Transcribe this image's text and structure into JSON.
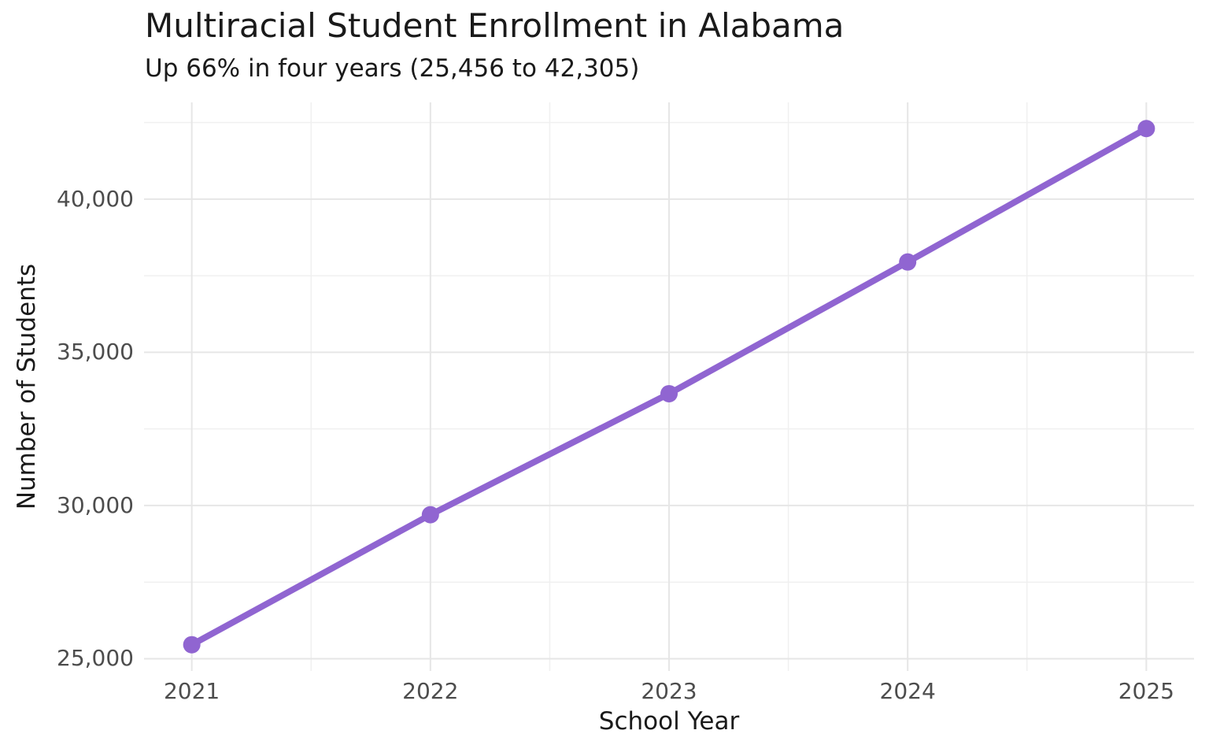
{
  "chart_data": {
    "type": "line",
    "title": "Multiracial Student Enrollment in Alabama",
    "subtitle": "Up 66% in four years (25,456 to 42,305)",
    "xlabel": "School Year",
    "ylabel": "Number of Students",
    "categories": [
      2021,
      2022,
      2023,
      2024,
      2025
    ],
    "x_tick_labels": [
      "2021",
      "2022",
      "2023",
      "2024",
      "2025"
    ],
    "series": [
      {
        "name": "Multiracial student enrollment",
        "values": [
          25456,
          29700,
          33650,
          37950,
          42305
        ]
      }
    ],
    "y_ticks": [
      {
        "value": 25000,
        "label": "25,000"
      },
      {
        "value": 30000,
        "label": "30,000"
      },
      {
        "value": 35000,
        "label": "35,000"
      },
      {
        "value": 40000,
        "label": "40,000"
      }
    ],
    "y_minor_gridlines": [
      27500,
      32500,
      37500,
      42500
    ],
    "x_minor_gridlines": [
      2021.5,
      2022.5,
      2023.5,
      2024.5
    ],
    "xlim": [
      2020.8,
      2025.2
    ],
    "ylim": [
      24600,
      43160
    ],
    "grid": "major-and-minor",
    "legend": "none",
    "colors": {
      "line": "#9065D1",
      "point": "#9065D1",
      "grid_major": "#e6e6e6",
      "grid_minor": "#f0f0f0",
      "tick_text": "#4d4d4d",
      "title_text": "#1a1a1a",
      "background": "#ffffff"
    }
  }
}
